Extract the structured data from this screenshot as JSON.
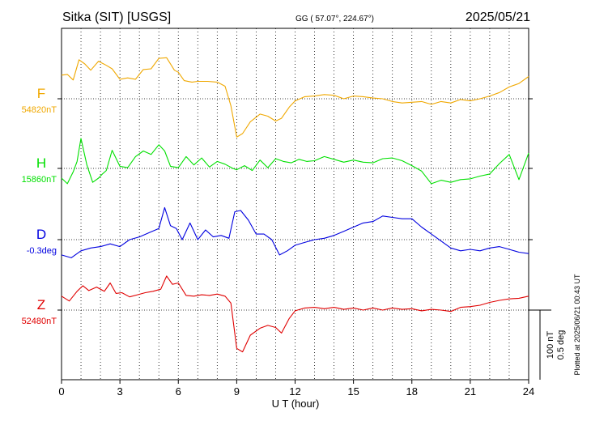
{
  "header": {
    "station": "Sitka (SIT)  [USGS]",
    "coords": "GG ( 57.07°, 224.67°)",
    "date": "2025/05/21"
  },
  "footer": {
    "xlabel": "U T (hour)",
    "plotted": "Plotted at 2025/06/21 00:43 UT"
  },
  "scale": {
    "nt": "100 nT",
    "deg": "0.5 deg"
  },
  "chart_data": {
    "type": "line",
    "xlabel": "U T (hour)",
    "xlim": [
      0,
      24
    ],
    "x_ticks": [
      0,
      3,
      6,
      9,
      12,
      15,
      18,
      21,
      24
    ],
    "grid": "dotted vertical lines each hour, dotted baseline per component",
    "scale_bar": "100 nT / 0.5 deg",
    "series": [
      {
        "name": "F",
        "baseline_label": "54820nT",
        "color": "#f0a800",
        "units": "nT offset from baseline",
        "x": [
          0,
          0.3,
          0.6,
          0.9,
          1.2,
          1.5,
          1.9,
          2.3,
          2.6,
          3.0,
          3.4,
          3.8,
          4.2,
          4.6,
          5.0,
          5.4,
          5.8,
          6.0,
          6.3,
          6.7,
          7.0,
          7.5,
          8.0,
          8.4,
          8.7,
          9.0,
          9.3,
          9.7,
          10.2,
          10.6,
          11.0,
          11.3,
          11.7,
          12.0,
          12.5,
          13.0,
          13.5,
          14.0,
          14.5,
          15.0,
          15.5,
          16.0,
          16.5,
          17.0,
          17.5,
          18.0,
          18.5,
          19.0,
          19.5,
          20.0,
          20.5,
          21.0,
          21.5,
          22.0,
          22.5,
          23.0,
          23.5,
          24.0
        ],
        "values": [
          34,
          35,
          27,
          56,
          50,
          41,
          54,
          48,
          43,
          28,
          30,
          28,
          42,
          43,
          58,
          59,
          41,
          38,
          26,
          24,
          25,
          25,
          24,
          18,
          -10,
          -55,
          -50,
          -33,
          -22,
          -25,
          -32,
          -28,
          -12,
          -3,
          3,
          4,
          6,
          5,
          0,
          4,
          3,
          1,
          0,
          -4,
          -6,
          -5,
          -4,
          -8,
          -4,
          -6,
          -1,
          -3,
          0,
          4,
          9,
          17,
          22,
          32
        ]
      },
      {
        "name": "H",
        "baseline_label": "15860nT",
        "color": "#00e000",
        "units": "nT offset from baseline",
        "x": [
          0,
          0.3,
          0.6,
          0.8,
          1.0,
          1.3,
          1.6,
          1.9,
          2.1,
          2.3,
          2.6,
          3.0,
          3.4,
          3.8,
          4.2,
          4.6,
          5.0,
          5.3,
          5.6,
          6.0,
          6.4,
          6.8,
          7.2,
          7.6,
          8.0,
          8.4,
          8.8,
          9.0,
          9.4,
          9.8,
          10.2,
          10.6,
          11.0,
          11.4,
          11.8,
          12.2,
          12.6,
          13.0,
          13.5,
          14.0,
          14.5,
          15.0,
          15.5,
          16.0,
          16.5,
          17.0,
          17.5,
          18.0,
          18.5,
          19.0,
          19.5,
          20.0,
          20.5,
          21.0,
          21.5,
          22.0,
          22.5,
          23.0,
          23.5,
          24.0
        ],
        "values": [
          -14,
          -22,
          -5,
          10,
          43,
          5,
          -20,
          -14,
          -8,
          -3,
          26,
          3,
          1,
          17,
          25,
          20,
          34,
          25,
          3,
          1,
          17,
          5,
          15,
          2,
          10,
          6,
          0,
          -2,
          4,
          -3,
          12,
          1,
          14,
          10,
          8,
          13,
          10,
          11,
          17,
          13,
          9,
          12,
          9,
          8,
          14,
          15,
          11,
          4,
          -4,
          -22,
          -17,
          -20,
          -16,
          -15,
          -11,
          -8,
          7,
          20,
          -16,
          22
        ]
      },
      {
        "name": "D",
        "baseline_label": "-0.3deg",
        "color": "#0000e0",
        "units": "deg offset from baseline",
        "x": [
          0,
          0.5,
          1.0,
          1.5,
          2.0,
          2.5,
          3.0,
          3.5,
          4.0,
          4.5,
          5.0,
          5.3,
          5.6,
          5.9,
          6.2,
          6.6,
          7.0,
          7.4,
          7.8,
          8.2,
          8.6,
          8.9,
          9.2,
          9.6,
          10.0,
          10.4,
          10.8,
          11.2,
          11.6,
          12.0,
          12.5,
          13.0,
          13.5,
          14.0,
          14.5,
          15.0,
          15.5,
          16.0,
          16.5,
          17.0,
          17.5,
          18.0,
          18.5,
          19.0,
          19.5,
          20.0,
          20.5,
          21.0,
          21.5,
          22.0,
          22.5,
          23.0,
          23.5,
          24.0
        ],
        "values": [
          -0.11,
          -0.13,
          -0.08,
          -0.06,
          -0.05,
          -0.03,
          -0.05,
          0.0,
          0.02,
          0.05,
          0.08,
          0.23,
          0.1,
          0.08,
          0.0,
          0.12,
          0.0,
          0.07,
          0.02,
          0.03,
          0.01,
          0.2,
          0.21,
          0.14,
          0.04,
          0.04,
          0.0,
          -0.11,
          -0.08,
          -0.04,
          -0.02,
          0.0,
          0.01,
          0.03,
          0.06,
          0.09,
          0.12,
          0.13,
          0.17,
          0.16,
          0.15,
          0.15,
          0.09,
          0.04,
          -0.01,
          -0.06,
          -0.08,
          -0.07,
          -0.08,
          -0.06,
          -0.05,
          -0.07,
          -0.09,
          -0.1
        ]
      },
      {
        "name": "Z",
        "baseline_label": "52480nT",
        "color": "#e00000",
        "units": "nT offset from baseline",
        "x": [
          0,
          0.4,
          0.8,
          1.1,
          1.4,
          1.8,
          2.2,
          2.5,
          2.8,
          3.1,
          3.5,
          3.9,
          4.3,
          4.7,
          5.1,
          5.4,
          5.7,
          6.0,
          6.4,
          6.8,
          7.2,
          7.6,
          8.0,
          8.4,
          8.7,
          9.0,
          9.3,
          9.7,
          10.2,
          10.6,
          11.0,
          11.3,
          11.7,
          12.0,
          12.5,
          13.0,
          13.5,
          14.0,
          14.5,
          15.0,
          15.5,
          16.0,
          16.5,
          17.0,
          17.5,
          18.0,
          18.5,
          19.0,
          19.5,
          20.0,
          20.5,
          21.0,
          21.5,
          22.0,
          22.5,
          23.0,
          23.5,
          24.0
        ],
        "values": [
          20,
          13,
          27,
          35,
          28,
          33,
          27,
          39,
          24,
          25,
          19,
          22,
          25,
          27,
          30,
          49,
          37,
          39,
          21,
          20,
          22,
          21,
          23,
          20,
          10,
          -55,
          -60,
          -36,
          -26,
          -22,
          -25,
          -33,
          -12,
          -1,
          3,
          4,
          2,
          4,
          1,
          3,
          0,
          3,
          0,
          3,
          1,
          2,
          -1,
          1,
          0,
          -2,
          4,
          5,
          7,
          11,
          14,
          16,
          17,
          20
        ]
      }
    ]
  }
}
